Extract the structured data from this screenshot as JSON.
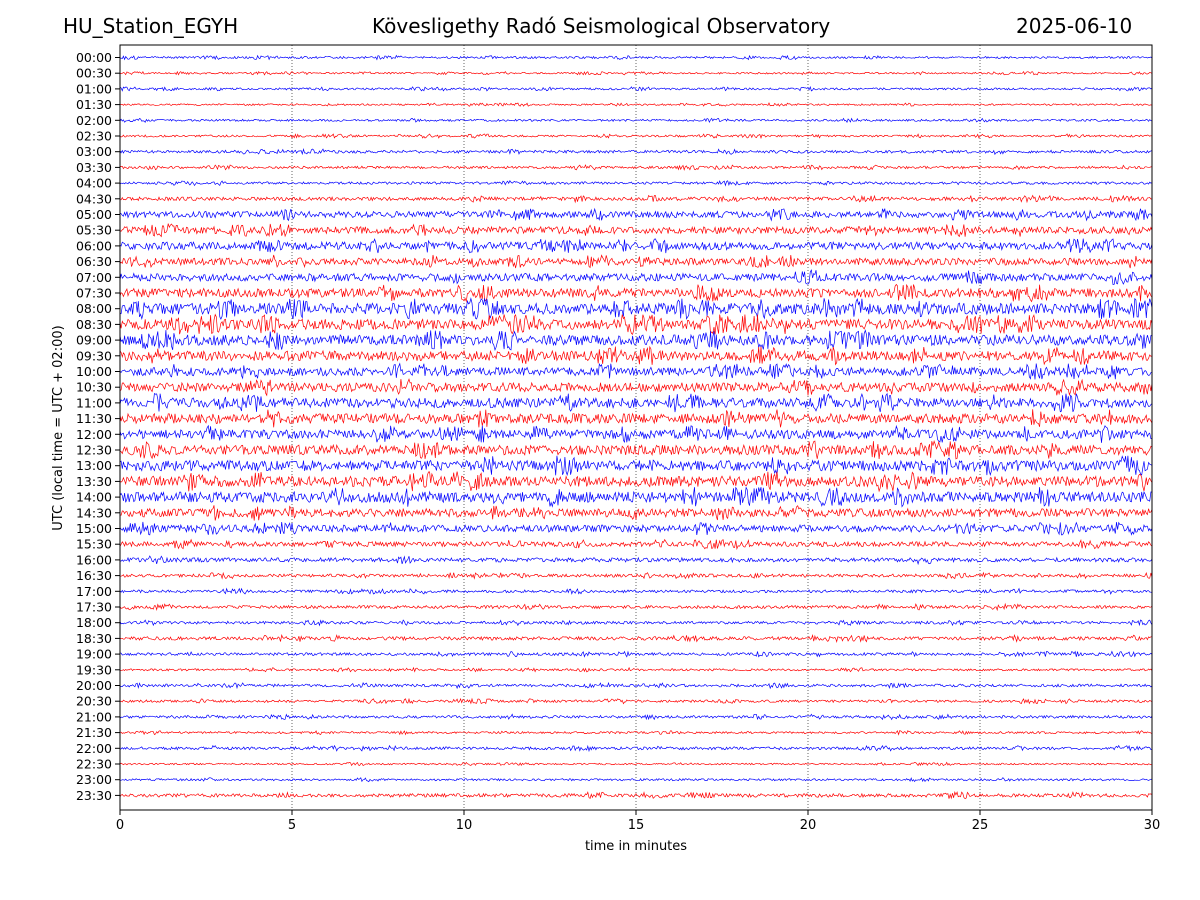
{
  "header": {
    "station": "HU_Station_EGYH",
    "observatory": "Kövesligethy Radó Seismological Observatory",
    "date": "2025-06-10"
  },
  "chart_data": {
    "type": "line",
    "title": "Kövesligethy Radó Seismological Observatory",
    "xlabel": "time in minutes",
    "ylabel": "UTC (local time = UTC + 02:00)",
    "xlim": [
      0,
      30
    ],
    "xticks": [
      0,
      5,
      10,
      15,
      20,
      25,
      30
    ],
    "grid": "vertical dotted lines at x ticks",
    "colors": {
      "even_rows": "#0000ff",
      "odd_rows": "#ff0000"
    },
    "row_labels": [
      "00:00",
      "00:30",
      "01:00",
      "01:30",
      "02:00",
      "02:30",
      "03:00",
      "03:30",
      "04:00",
      "04:30",
      "05:00",
      "05:30",
      "06:00",
      "06:30",
      "07:00",
      "07:30",
      "08:00",
      "08:30",
      "09:00",
      "09:30",
      "10:00",
      "10:30",
      "11:00",
      "11:30",
      "12:00",
      "12:30",
      "13:00",
      "13:30",
      "14:00",
      "14:30",
      "15:00",
      "15:30",
      "16:00",
      "16:30",
      "17:00",
      "17:30",
      "18:00",
      "18:30",
      "19:00",
      "19:30",
      "20:00",
      "20:30",
      "21:00",
      "21:30",
      "22:00",
      "22:30",
      "23:00",
      "23:30"
    ],
    "relative_amplitude": [
      0.15,
      0.12,
      0.15,
      0.12,
      0.15,
      0.15,
      0.2,
      0.18,
      0.18,
      0.25,
      0.45,
      0.5,
      0.55,
      0.5,
      0.55,
      0.65,
      0.8,
      0.75,
      0.75,
      0.7,
      0.6,
      0.65,
      0.7,
      0.7,
      0.65,
      0.7,
      0.75,
      0.75,
      0.75,
      0.6,
      0.5,
      0.35,
      0.3,
      0.22,
      0.2,
      0.22,
      0.2,
      0.25,
      0.2,
      0.15,
      0.2,
      0.18,
      0.2,
      0.15,
      0.2,
      0.12,
      0.15,
      0.25
    ]
  }
}
